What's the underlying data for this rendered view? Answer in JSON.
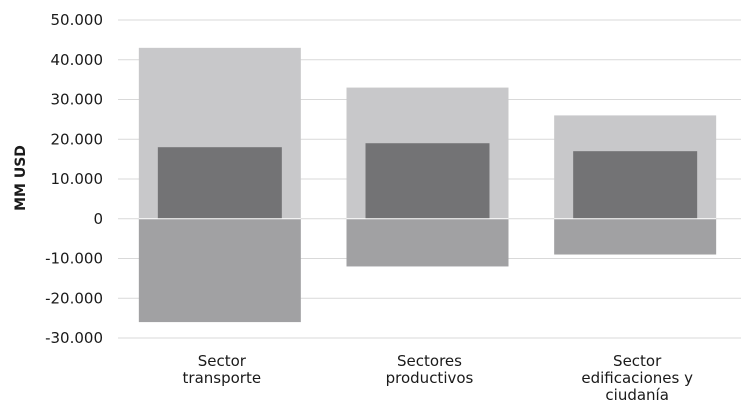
{
  "chart_data": {
    "type": "bar",
    "ylabel": "MM USD",
    "ylim": [
      -30000,
      50000
    ],
    "yticks": [
      50000,
      40000,
      30000,
      20000,
      10000,
      0,
      -10000,
      -20000,
      -30000
    ],
    "ytick_labels": [
      "50.000",
      "40.000",
      "30.000",
      "20.000",
      "10.000",
      "0",
      "-10.000",
      "-20.000",
      "-30.000"
    ],
    "categories": [
      [
        "Sector",
        "transporte"
      ],
      [
        "Sectores",
        "productivos"
      ],
      [
        "Sector",
        "edificaciones y",
        "ciudanía"
      ]
    ],
    "series": [
      {
        "role": "positive-outer",
        "values": [
          43000,
          33000,
          26000
        ],
        "color": "#c8c8ca"
      },
      {
        "role": "negative",
        "values": [
          -26000,
          -12000,
          -9000
        ],
        "color": "#a1a1a3"
      },
      {
        "role": "positive-inner",
        "values": [
          18000,
          19000,
          17000
        ],
        "color": "#737375"
      }
    ],
    "grid": true,
    "grid_color": "#d9d9d9"
  }
}
